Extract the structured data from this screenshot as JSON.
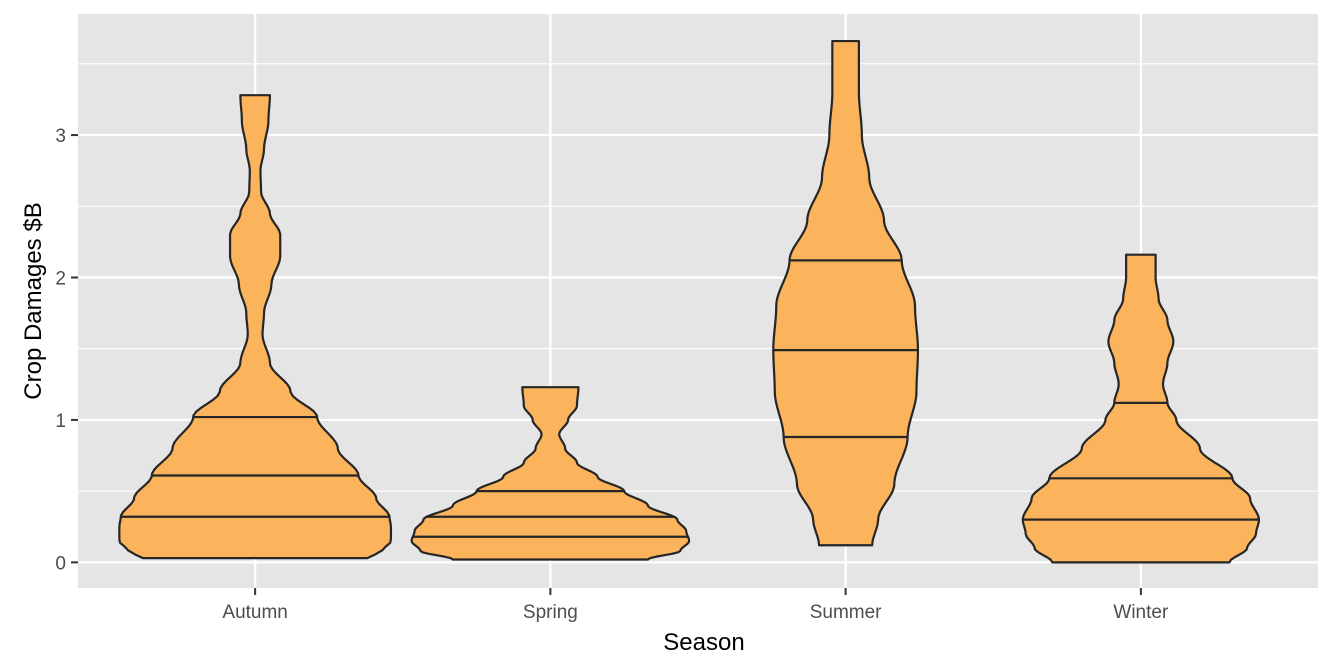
{
  "chart_data": {
    "type": "violin",
    "xlabel": "Season",
    "ylabel": "Crop Damages $B",
    "categories": [
      "Autumn",
      "Spring",
      "Summer",
      "Winter"
    ],
    "ylim": [
      -0.18,
      3.85
    ],
    "yticks": [
      0,
      1,
      2,
      3
    ],
    "ytick_labels": [
      "0",
      "1",
      "2",
      "3"
    ],
    "fill_color": "#FBB35C",
    "outline_color": "#262626",
    "panel_background": "#E5E5E5",
    "grid": true,
    "series": [
      {
        "category": "Autumn",
        "range": [
          0.03,
          3.28
        ],
        "quantiles": [
          0.32,
          0.61,
          1.02
        ],
        "half_width": [
          [
            0.03,
            0.38
          ],
          [
            0.08,
            0.43
          ],
          [
            0.15,
            0.46
          ],
          [
            0.25,
            0.46
          ],
          [
            0.32,
            0.455
          ],
          [
            0.45,
            0.41
          ],
          [
            0.61,
            0.35
          ],
          [
            0.8,
            0.28
          ],
          [
            1.02,
            0.21
          ],
          [
            1.2,
            0.12
          ],
          [
            1.4,
            0.05
          ],
          [
            1.6,
            0.025
          ],
          [
            1.75,
            0.03
          ],
          [
            1.95,
            0.055
          ],
          [
            2.15,
            0.085
          ],
          [
            2.3,
            0.085
          ],
          [
            2.45,
            0.05
          ],
          [
            2.6,
            0.02
          ],
          [
            2.75,
            0.018
          ],
          [
            2.9,
            0.03
          ],
          [
            3.1,
            0.045
          ],
          [
            3.28,
            0.05
          ]
        ]
      },
      {
        "category": "Spring",
        "range": [
          0.02,
          1.23
        ],
        "quantiles": [
          0.18,
          0.32,
          0.5
        ],
        "half_width": [
          [
            0.02,
            0.33
          ],
          [
            0.08,
            0.44
          ],
          [
            0.15,
            0.47
          ],
          [
            0.22,
            0.46
          ],
          [
            0.3,
            0.43
          ],
          [
            0.4,
            0.33
          ],
          [
            0.5,
            0.25
          ],
          [
            0.6,
            0.16
          ],
          [
            0.7,
            0.09
          ],
          [
            0.8,
            0.05
          ],
          [
            0.9,
            0.03
          ],
          [
            1.0,
            0.06
          ],
          [
            1.1,
            0.09
          ],
          [
            1.23,
            0.095
          ]
        ]
      },
      {
        "category": "Summer",
        "range": [
          0.12,
          3.66
        ],
        "quantiles": [
          0.88,
          1.49,
          2.12
        ],
        "half_width": [
          [
            0.12,
            0.09
          ],
          [
            0.3,
            0.11
          ],
          [
            0.55,
            0.165
          ],
          [
            0.88,
            0.21
          ],
          [
            1.2,
            0.24
          ],
          [
            1.49,
            0.245
          ],
          [
            1.8,
            0.235
          ],
          [
            2.12,
            0.19
          ],
          [
            2.4,
            0.13
          ],
          [
            2.7,
            0.08
          ],
          [
            3.0,
            0.055
          ],
          [
            3.3,
            0.045
          ],
          [
            3.66,
            0.045
          ]
        ]
      },
      {
        "category": "Winter",
        "range": [
          0.0,
          2.16
        ],
        "quantiles": [
          0.3,
          0.59,
          1.12
        ],
        "half_width": [
          [
            0.0,
            0.3
          ],
          [
            0.1,
            0.36
          ],
          [
            0.2,
            0.39
          ],
          [
            0.3,
            0.4
          ],
          [
            0.45,
            0.37
          ],
          [
            0.59,
            0.31
          ],
          [
            0.8,
            0.2
          ],
          [
            1.0,
            0.12
          ],
          [
            1.12,
            0.09
          ],
          [
            1.25,
            0.075
          ],
          [
            1.4,
            0.09
          ],
          [
            1.55,
            0.11
          ],
          [
            1.7,
            0.09
          ],
          [
            1.85,
            0.06
          ],
          [
            2.0,
            0.05
          ],
          [
            2.16,
            0.05
          ]
        ]
      }
    ]
  }
}
